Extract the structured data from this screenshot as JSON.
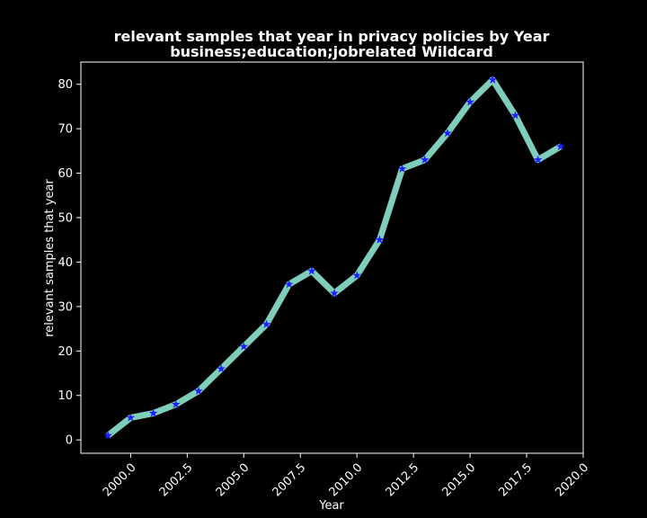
{
  "chart_data": {
    "type": "line",
    "title": [
      "relevant samples that year in privacy policies by Year",
      "business;education;jobrelated Wildcard"
    ],
    "xlabel": "Year",
    "ylabel": "relevant samples that year",
    "xlim": [
      1997.8,
      2020.0
    ],
    "ylim": [
      -3,
      85
    ],
    "xticks": [
      2000.0,
      2002.5,
      2005.0,
      2007.5,
      2010.0,
      2012.5,
      2015.0,
      2017.5,
      2020.0
    ],
    "xtick_labels": [
      "2000.0",
      "2002.5",
      "2005.0",
      "2007.5",
      "2010.0",
      "2012.5",
      "2015.0",
      "2017.5",
      "2020.0"
    ],
    "yticks": [
      0,
      10,
      20,
      30,
      40,
      50,
      60,
      70,
      80
    ],
    "ytick_labels": [
      "0",
      "10",
      "20",
      "30",
      "40",
      "50",
      "60",
      "70",
      "80"
    ],
    "grid": false,
    "series": [
      {
        "x": [
          1999,
          2000,
          2001,
          2002,
          2003,
          2004,
          2005,
          2006,
          2007,
          2008,
          2009,
          2010,
          2011,
          2012,
          2013,
          2014,
          2015,
          2016,
          2017,
          2018,
          2019
        ],
        "values": [
          1,
          5,
          6,
          8,
          11,
          16,
          21,
          26,
          35,
          38,
          33,
          37,
          45,
          61,
          63,
          69,
          76,
          81,
          73,
          63,
          66
        ],
        "line_color": "#7fcdbb",
        "marker_color": "#1f1fff",
        "marker": "star"
      }
    ],
    "colors": {
      "background": "#000000",
      "axes": "#ffffff",
      "text": "#ffffff"
    }
  }
}
